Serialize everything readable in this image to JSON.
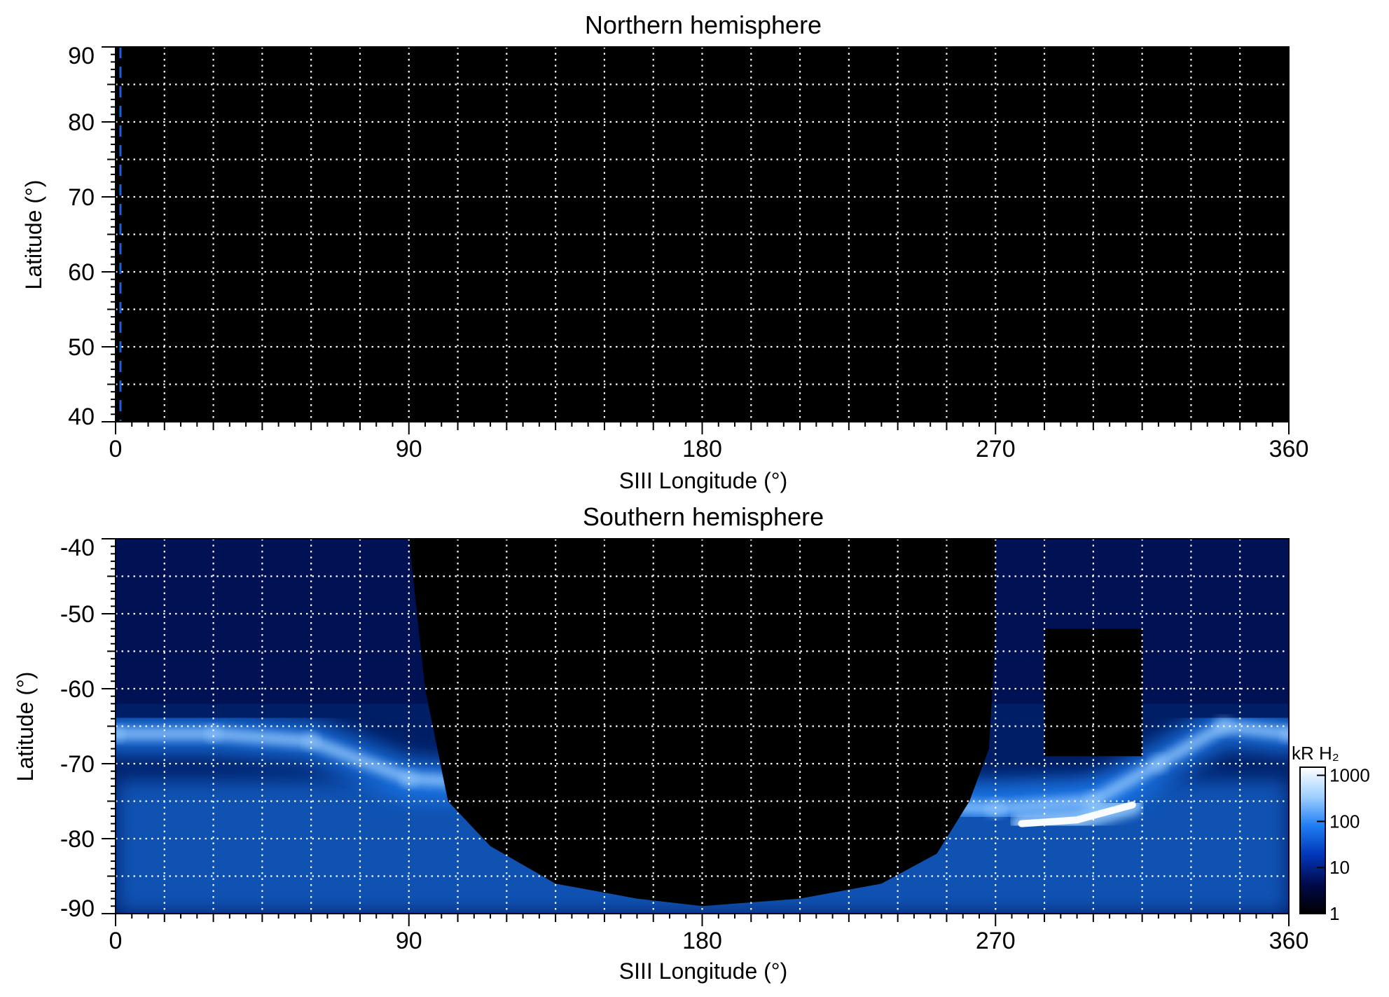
{
  "colors": {
    "background": "#000000",
    "grid": "#ffffff",
    "colormap": [
      "#000000",
      "#000a4a",
      "#0036b8",
      "#1f7df2",
      "#9fd0ff",
      "#ffffff"
    ]
  },
  "chart_data": [
    {
      "type": "heatmap",
      "title": "Northern hemisphere",
      "xlabel": "SIII Longitude (°)",
      "ylabel": "Latitude (°)",
      "xlim": [
        0,
        360
      ],
      "ylim": [
        40,
        90
      ],
      "xticks": [
        0,
        90,
        180,
        270,
        360
      ],
      "yticks": [
        40,
        50,
        60,
        70,
        80,
        90
      ],
      "grid": true,
      "grid_step_x": 15,
      "grid_step_y": 5,
      "emission": "none visible (black map)",
      "marker": {
        "style": "dashed",
        "color": "#1f5fd6",
        "longitude": 1.5,
        "lat_range": [
          40,
          90
        ]
      }
    },
    {
      "type": "heatmap",
      "title": "Southern hemisphere",
      "xlabel": "SIII Longitude (°)",
      "ylabel": "Latitude (°)",
      "xlim": [
        0,
        360
      ],
      "ylim": [
        -90,
        -40
      ],
      "xticks": [
        0,
        90,
        180,
        270,
        360
      ],
      "yticks": [
        -90,
        -80,
        -70,
        -60,
        -50,
        -40
      ],
      "grid": true,
      "grid_step_x": 15,
      "grid_step_y": 5,
      "colorbar": {
        "label": "kR H₂",
        "scale": "log",
        "ticks": [
          1,
          10,
          100,
          1000
        ],
        "range": [
          1,
          1500
        ]
      },
      "no_data_region_boundary": [
        {
          "lon": 90,
          "lat": -40
        },
        {
          "lon": 95,
          "lat": -60
        },
        {
          "lon": 102,
          "lat": -75
        },
        {
          "lon": 115,
          "lat": -81
        },
        {
          "lon": 135,
          "lat": -86
        },
        {
          "lon": 160,
          "lat": -88
        },
        {
          "lon": 180,
          "lat": -89
        },
        {
          "lon": 210,
          "lat": -88
        },
        {
          "lon": 235,
          "lat": -86
        },
        {
          "lon": 252,
          "lat": -82
        },
        {
          "lon": 262,
          "lat": -75
        },
        {
          "lon": 268,
          "lat": -68
        },
        {
          "lon": 270,
          "lat": -53
        }
      ],
      "data_gap_region": {
        "lon_range": [
          285,
          315
        ],
        "lat_range": [
          -69,
          -52
        ]
      },
      "main_oval": [
        {
          "lon": 0,
          "lat": -66,
          "kR": 200
        },
        {
          "lon": 30,
          "lat": -66,
          "kR": 200
        },
        {
          "lon": 60,
          "lat": -67,
          "kR": 250
        },
        {
          "lon": 90,
          "lat": -72,
          "kR": 250
        },
        {
          "lon": 270,
          "lat": -76,
          "kR": 500
        },
        {
          "lon": 300,
          "lat": -75,
          "kR": 600
        },
        {
          "lon": 320,
          "lat": -70,
          "kR": 400
        },
        {
          "lon": 340,
          "lat": -65,
          "kR": 700
        },
        {
          "lon": 360,
          "lat": -66,
          "kR": 200
        }
      ],
      "bright_arc": [
        {
          "lon": 278,
          "lat": -78,
          "kR": 800
        },
        {
          "lon": 295,
          "lat": -77.5,
          "kR": 1000
        },
        {
          "lon": 312,
          "lat": -75.5,
          "kR": 800
        }
      ]
    }
  ]
}
